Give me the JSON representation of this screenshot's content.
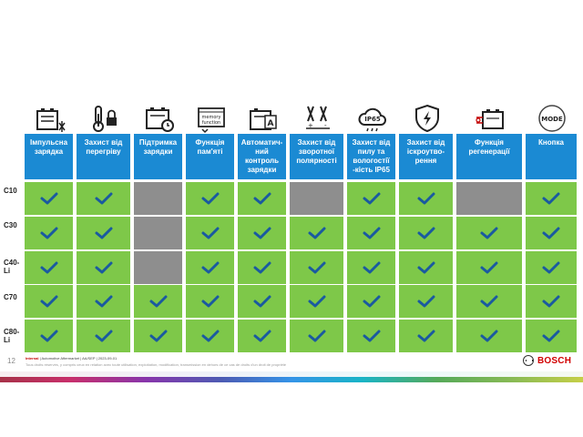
{
  "columns": [
    "Імпульсна\nзарядка",
    "Захист від\nперегріву",
    "Підтримка\nзарядки",
    "Функція\nпам'яті",
    "Автоматич-\nний\nконтроль\nзарядки",
    "Захист від\nзворотної\nполярності",
    "Захист від\nпилу та\nвологостії\n-кість IP65",
    "Захист від\nіскроутво-\nрення",
    "Функція\nрегенерації",
    "Кнопка"
  ],
  "icons": [
    "battery-snowflake-icon",
    "thermometer-lock-icon",
    "battery-clock-icon",
    "memory-function-icon",
    "battery-a-icon",
    "clamps-polarity-icon",
    "ip65-cloud-icon",
    "shield-lightning-icon",
    "battery-regeneration-icon",
    "mode-button-icon"
  ],
  "icon_text": {
    "memory": "memory\nfunction",
    "ip65": "IP65",
    "mode": "MODE"
  },
  "rows": [
    {
      "label": "C10",
      "cells": [
        "check",
        "check",
        "gray",
        "check",
        "check",
        "gray",
        "check",
        "check",
        "gray",
        "check"
      ]
    },
    {
      "label": "C30",
      "cells": [
        "check",
        "check",
        "gray",
        "check",
        "check",
        "check",
        "check",
        "check",
        "check",
        "check"
      ]
    },
    {
      "label": "C40-Li",
      "cells": [
        "check",
        "check",
        "gray",
        "check",
        "check",
        "check",
        "check",
        "check",
        "check",
        "check"
      ]
    },
    {
      "label": "C70",
      "cells": [
        "check",
        "check",
        "check",
        "check",
        "check",
        "check",
        "check",
        "check",
        "check",
        "check"
      ]
    },
    {
      "label": "C80-Li",
      "cells": [
        "check",
        "check",
        "check",
        "check",
        "check",
        "check",
        "check",
        "check",
        "check",
        "check"
      ]
    }
  ],
  "footer": {
    "page_number": "12",
    "classification": "Internal",
    "line1_rest": " | Automotive Aftermarket | AA/SEP | 2023-09-01",
    "line2": "Tous droits réservés, y compris ceux en relation avec toute utilisation, exploitation, modification, transmission en dehors de ce cas de droits d'un droit de propriété",
    "brand": "BOSCH"
  },
  "colors": {
    "header": "#1b8ad3",
    "check_cell": "#7ec849",
    "gray_cell": "#8e8e8e",
    "checkmark": "#1a5aa0"
  }
}
